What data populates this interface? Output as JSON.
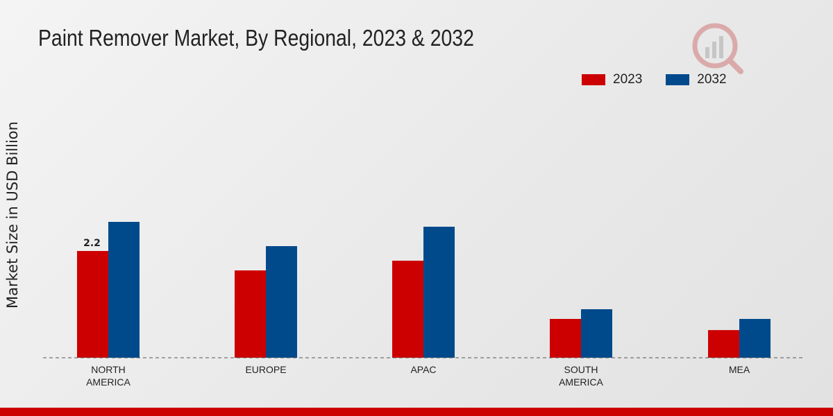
{
  "colors": {
    "series_2023": "#cc0000",
    "series_2032": "#004a8c",
    "bottom_bar": "#cc0000"
  },
  "icons": {
    "logo": "watermark-logo-icon"
  },
  "chart_data": {
    "type": "bar",
    "title": "Paint Remover Market, By Regional, 2023 & 2032",
    "xlabel": "",
    "ylabel": "Market Size in USD Billion",
    "ylim": [
      0,
      5
    ],
    "grid": false,
    "legend_position": "top-right",
    "categories": [
      "NORTH AMERICA",
      "EUROPE",
      "APAC",
      "SOUTH AMERICA",
      "MEA"
    ],
    "category_lines": [
      [
        "NORTH",
        "AMERICA"
      ],
      [
        "EUROPE"
      ],
      [
        "APAC"
      ],
      [
        "SOUTH",
        "AMERICA"
      ],
      [
        "MEA"
      ]
    ],
    "series": [
      {
        "name": "2023",
        "values": [
          2.2,
          1.8,
          2.0,
          0.8,
          0.57
        ]
      },
      {
        "name": "2032",
        "values": [
          2.8,
          2.3,
          2.7,
          1.0,
          0.8
        ]
      }
    ],
    "data_labels": [
      {
        "series": 0,
        "index": 0,
        "text": "2.2"
      }
    ]
  }
}
